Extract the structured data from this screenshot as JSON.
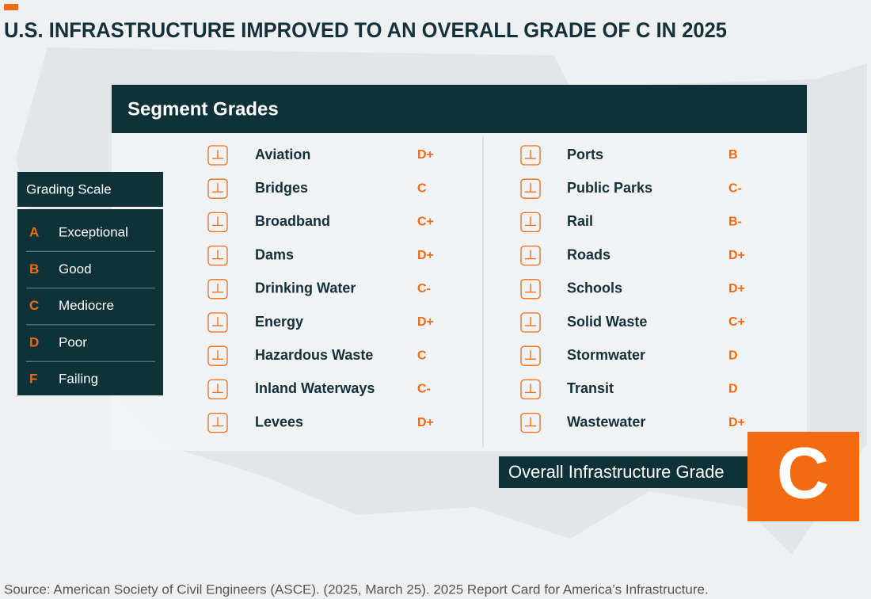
{
  "title": "U.S. INFRASTRUCTURE IMPROVED TO AN OVERALL GRADE OF C IN 2025",
  "segment_grades": {
    "heading": "Segment Grades",
    "left": [
      {
        "name": "Aviation",
        "grade": "D+"
      },
      {
        "name": "Bridges",
        "grade": "C"
      },
      {
        "name": "Broadband",
        "grade": "C+"
      },
      {
        "name": "Dams",
        "grade": "D+"
      },
      {
        "name": "Drinking Water",
        "grade": "C-"
      },
      {
        "name": "Energy",
        "grade": "D+"
      },
      {
        "name": "Hazardous Waste",
        "grade": "C"
      },
      {
        "name": "Inland Waterways",
        "grade": "C-"
      },
      {
        "name": "Levees",
        "grade": "D+"
      }
    ],
    "right": [
      {
        "name": "Ports",
        "grade": "B"
      },
      {
        "name": "Public Parks",
        "grade": "C-"
      },
      {
        "name": "Rail",
        "grade": "B-"
      },
      {
        "name": "Roads",
        "grade": "D+"
      },
      {
        "name": "Schools",
        "grade": "D+"
      },
      {
        "name": "Solid Waste",
        "grade": "C+"
      },
      {
        "name": "Stormwater",
        "grade": "D"
      },
      {
        "name": "Transit",
        "grade": "D"
      },
      {
        "name": "Wastewater",
        "grade": "D+"
      }
    ]
  },
  "grading_scale": {
    "heading": "Grading Scale",
    "rows": [
      {
        "letter": "A",
        "label": "Exceptional"
      },
      {
        "letter": "B",
        "label": "Good"
      },
      {
        "letter": "C",
        "label": "Mediocre"
      },
      {
        "letter": "D",
        "label": "Poor"
      },
      {
        "letter": "F",
        "label": "Failing"
      }
    ]
  },
  "overall": {
    "label": "Overall Infrastructure Grade",
    "grade": "C"
  },
  "source": "Source: American Society of Civil Engineers (ASCE). (2025, March 25). 2025 Report Card for America’s Infrastructure."
}
